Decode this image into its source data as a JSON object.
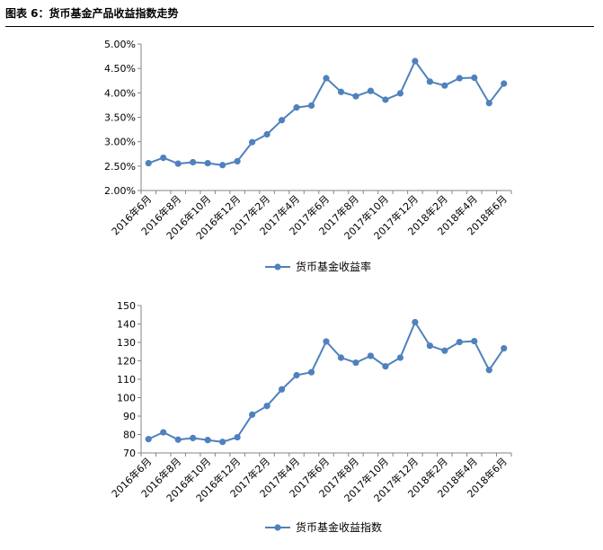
{
  "figure_title": "图表 6：货币基金产品收益指数走势",
  "colors": {
    "series": "#4f81bd",
    "axis": "#868686",
    "grid": "#d9d9d9"
  },
  "chart_data": [
    {
      "type": "line",
      "x": [
        "2016年6月",
        "2016年7月",
        "2016年8月",
        "2016年9月",
        "2016年10月",
        "2016年11月",
        "2016年12月",
        "2017年1月",
        "2017年2月",
        "2017年3月",
        "2017年4月",
        "2017年5月",
        "2017年6月",
        "2017年7月",
        "2017年8月",
        "2017年9月",
        "2017年10月",
        "2017年11月",
        "2017年12月",
        "2018年1月",
        "2018年2月",
        "2018年3月",
        "2018年4月",
        "2018年5月",
        "2018年6月"
      ],
      "xticklabels": [
        "2016年6月",
        "2016年8月",
        "2016年10月",
        "2016年12月",
        "2017年2月",
        "2017年4月",
        "2017年6月",
        "2017年8月",
        "2017年10月",
        "2017年12月",
        "2018年2月",
        "2018年4月",
        "2018年6月"
      ],
      "series": [
        {
          "name": "货币基金收益率",
          "values": [
            2.56,
            2.67,
            2.55,
            2.58,
            2.56,
            2.52,
            2.6,
            2.99,
            3.15,
            3.44,
            3.7,
            3.74,
            4.3,
            4.02,
            3.93,
            4.04,
            3.86,
            3.99,
            4.65,
            4.23,
            4.15,
            4.3,
            4.31,
            3.79,
            4.19
          ]
        }
      ],
      "ylim": [
        2.0,
        5.0
      ],
      "yticks": [
        2.0,
        2.5,
        3.0,
        3.5,
        4.0,
        4.5,
        5.0
      ],
      "yticklabels": [
        "2.00%",
        "2.50%",
        "3.00%",
        "3.50%",
        "4.00%",
        "4.50%",
        "5.00%"
      ],
      "grid": false,
      "legend": "bottom"
    },
    {
      "type": "line",
      "x": [
        "2016年6月",
        "2016年7月",
        "2016年8月",
        "2016年9月",
        "2016年10月",
        "2016年11月",
        "2016年12月",
        "2017年1月",
        "2017年2月",
        "2017年3月",
        "2017年4月",
        "2017年5月",
        "2017年6月",
        "2017年7月",
        "2017年8月",
        "2017年9月",
        "2017年10月",
        "2017年11月",
        "2017年12月",
        "2018年1月",
        "2018年2月",
        "2018年3月",
        "2018年4月",
        "2018年5月",
        "2018年6月"
      ],
      "xticklabels": [
        "2016年6月",
        "2016年8月",
        "2016年10月",
        "2016年12月",
        "2017年2月",
        "2017年4月",
        "2017年6月",
        "2017年8月",
        "2017年10月",
        "2017年12月",
        "2018年2月",
        "2018年4月",
        "2018年6月"
      ],
      "series": [
        {
          "name": "货币基金收益指数",
          "values": [
            77.5,
            81.2,
            77.2,
            78.1,
            77.0,
            76.0,
            78.5,
            90.8,
            95.5,
            104.5,
            112.2,
            113.8,
            130.5,
            121.7,
            119.0,
            122.7,
            117.0,
            121.7,
            141.0,
            128.2,
            125.5,
            130.2,
            130.7,
            115.0,
            126.8
          ]
        }
      ],
      "ylim": [
        70,
        150
      ],
      "yticks": [
        70,
        80,
        90,
        100,
        110,
        120,
        130,
        140,
        150
      ],
      "yticklabels": [
        "70",
        "80",
        "90",
        "100",
        "110",
        "120",
        "130",
        "140",
        "150"
      ],
      "grid": false,
      "legend": "bottom"
    }
  ]
}
